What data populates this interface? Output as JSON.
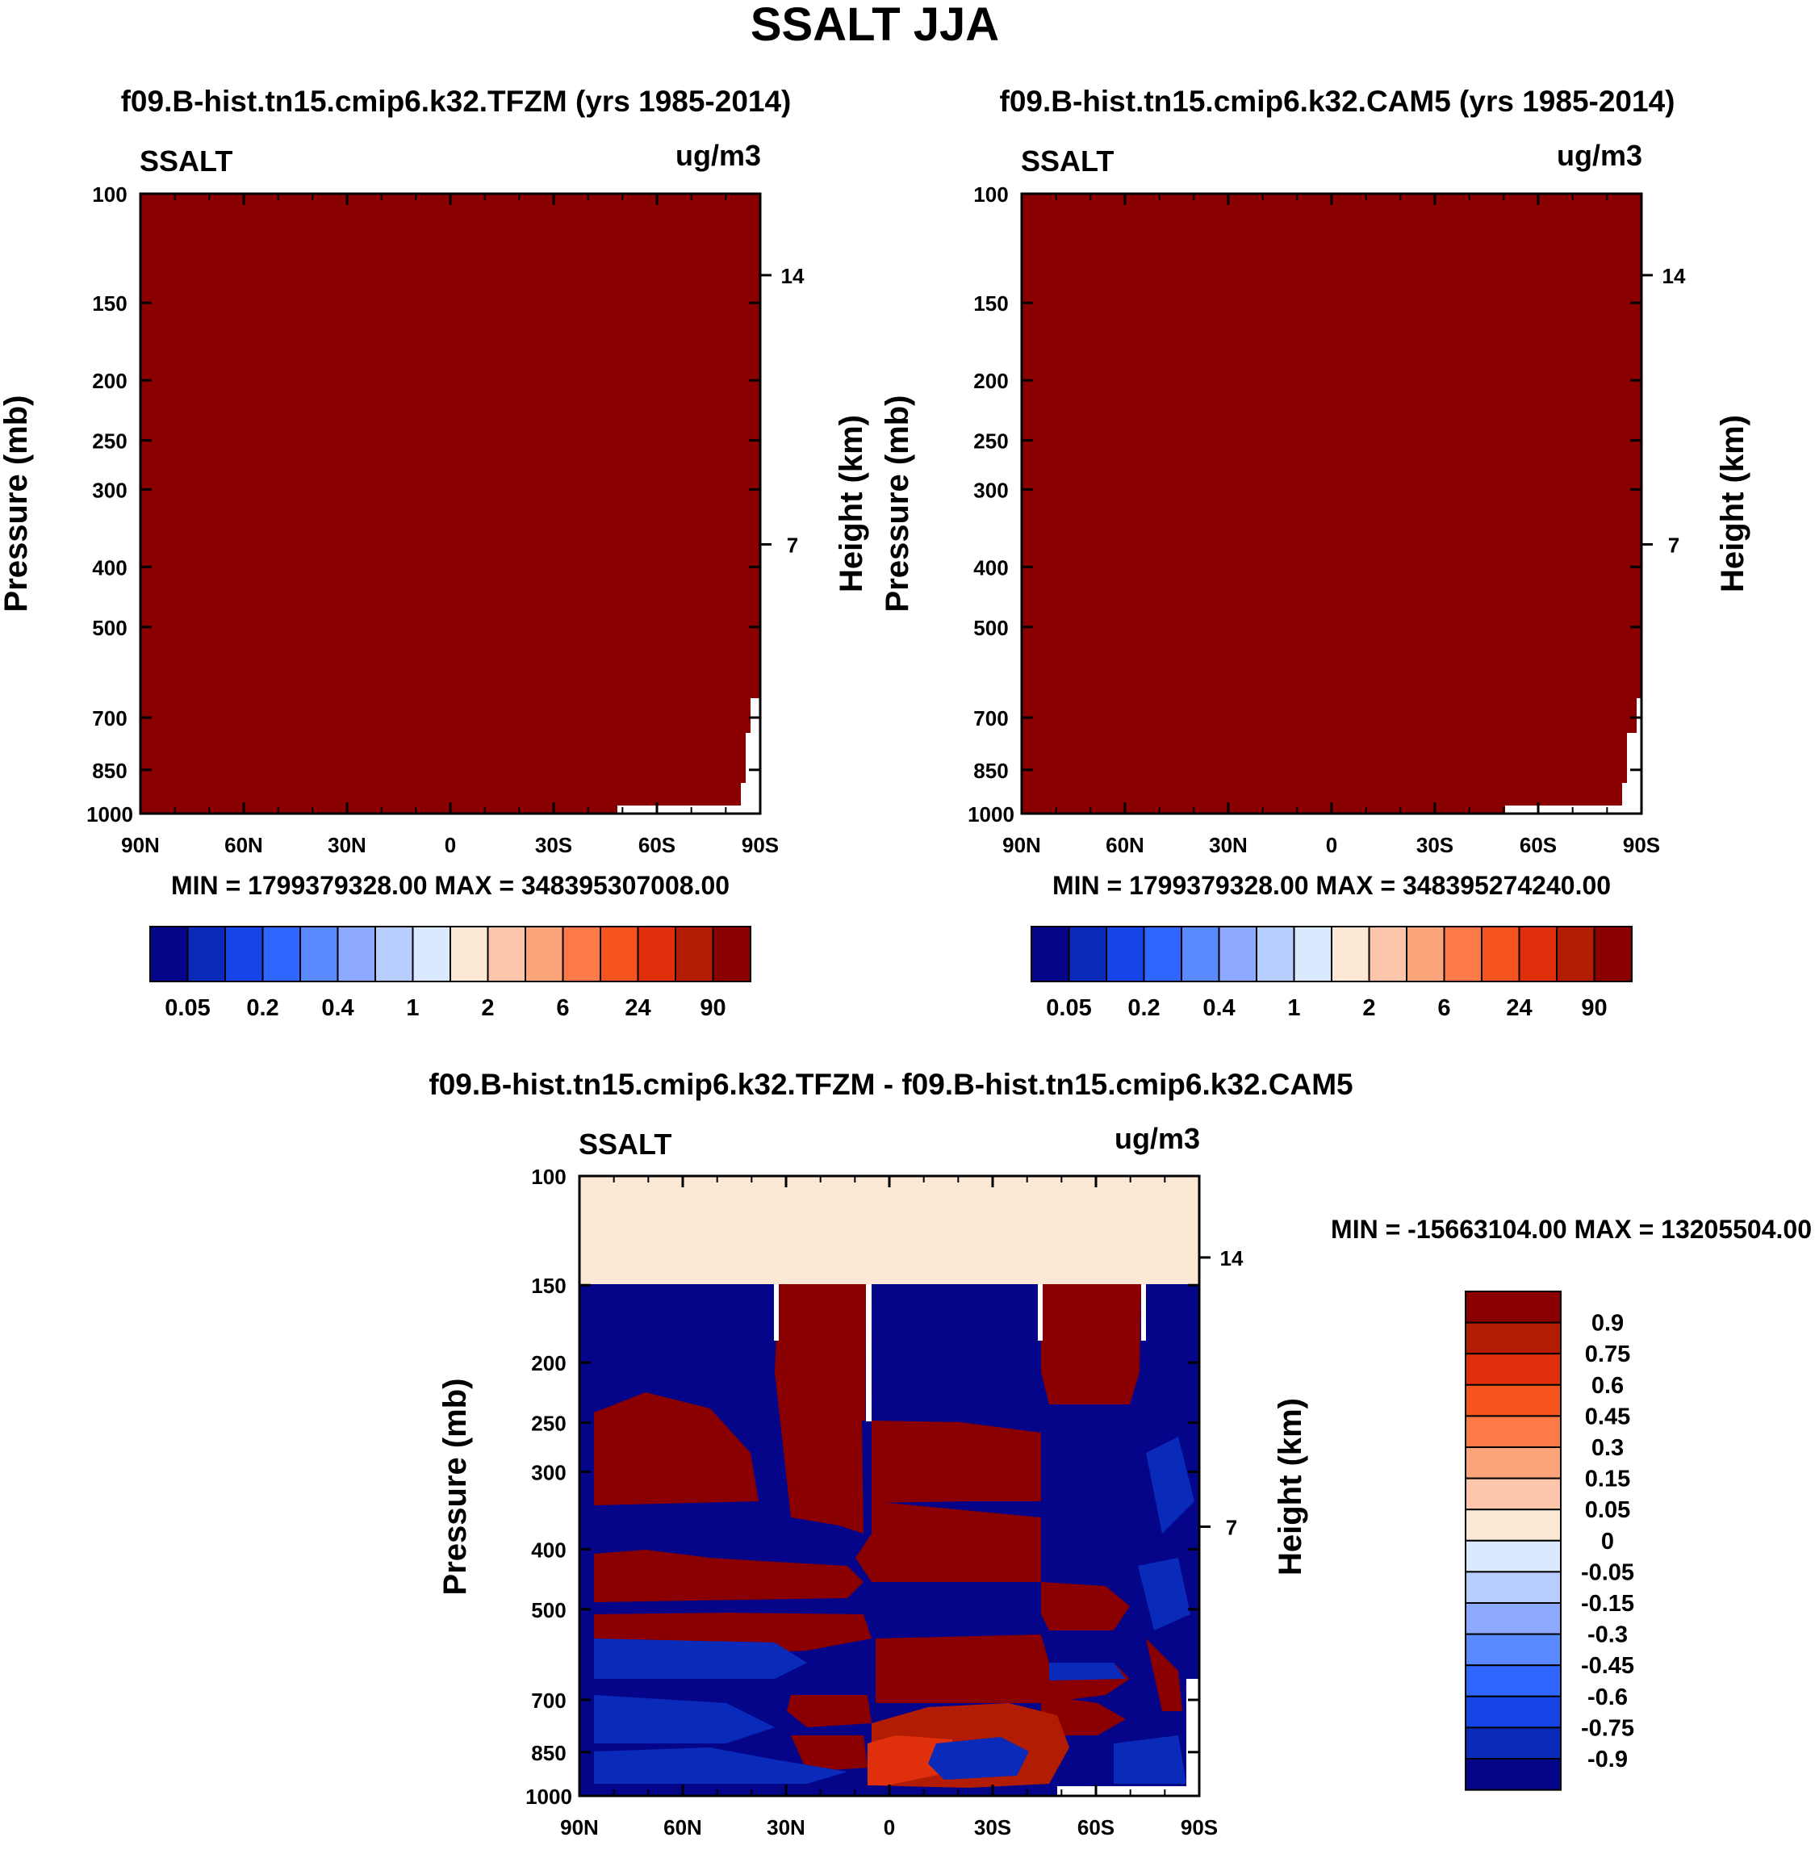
{
  "figure": {
    "title": "SSALT JJA"
  },
  "chart_data": [
    {
      "type": "heatmap",
      "title": "f09.B-hist.tn15.cmip6.k32.TFZM (yrs 1985-2014)",
      "left_label": "SSALT",
      "right_label": "ug/m3",
      "ylabel": "Pressure (mb)",
      "ylabel_right": "Height (km)",
      "x_ticks": [
        "90N",
        "60N",
        "30N",
        "0",
        "30S",
        "60S",
        "90S"
      ],
      "y_ticks": [
        "100",
        "150",
        "200",
        "250",
        "300",
        "400",
        "500",
        "700",
        "850",
        "1000"
      ],
      "y_ticks_right": [
        "14",
        "7"
      ],
      "ylim": [
        1000,
        100
      ],
      "stats": "MIN = 1799379328.00   MAX = 348395307008.00",
      "fill_color": "#8a0000",
      "colorbar": {
        "colors": [
          "#05058a",
          "#0a2aba",
          "#1545e6",
          "#2e66ff",
          "#5a88ff",
          "#8ca9ff",
          "#b8cdff",
          "#dbe9ff",
          "#fde8d6",
          "#fdc6aa",
          "#fca47b",
          "#fb7a48",
          "#f5541e",
          "#df300b",
          "#b11c03",
          "#8a0000"
        ],
        "labels": [
          "0.05",
          "0.2",
          "0.4",
          "1",
          "2",
          "6",
          "24",
          "90"
        ]
      }
    },
    {
      "type": "heatmap",
      "title": "f09.B-hist.tn15.cmip6.k32.CAM5 (yrs 1985-2014)",
      "left_label": "SSALT",
      "right_label": "ug/m3",
      "ylabel": "Pressure (mb)",
      "ylabel_right": "Height (km)",
      "x_ticks": [
        "90N",
        "60N",
        "30N",
        "0",
        "30S",
        "60S",
        "90S"
      ],
      "y_ticks": [
        "100",
        "150",
        "200",
        "250",
        "300",
        "400",
        "500",
        "700",
        "850",
        "1000"
      ],
      "y_ticks_right": [
        "14",
        "7"
      ],
      "ylim": [
        1000,
        100
      ],
      "stats": "MIN = 1799379328.00   MAX = 348395274240.00",
      "fill_color": "#8a0000",
      "colorbar": {
        "colors": [
          "#05058a",
          "#0a2aba",
          "#1545e6",
          "#2e66ff",
          "#5a88ff",
          "#8ca9ff",
          "#b8cdff",
          "#dbe9ff",
          "#fde8d6",
          "#fdc6aa",
          "#fca47b",
          "#fb7a48",
          "#f5541e",
          "#df300b",
          "#b11c03",
          "#8a0000"
        ],
        "labels": [
          "0.05",
          "0.2",
          "0.4",
          "1",
          "2",
          "6",
          "24",
          "90"
        ]
      }
    },
    {
      "type": "heatmap",
      "title": "f09.B-hist.tn15.cmip6.k32.TFZM - f09.B-hist.tn15.cmip6.k32.CAM5",
      "left_label": "SSALT",
      "right_label": "ug/m3",
      "ylabel": "Pressure (mb)",
      "ylabel_right": "Height (km)",
      "x_ticks": [
        "90N",
        "60N",
        "30N",
        "0",
        "30S",
        "60S",
        "90S"
      ],
      "y_ticks": [
        "100",
        "150",
        "200",
        "250",
        "300",
        "400",
        "500",
        "700",
        "850",
        "1000"
      ],
      "y_ticks_right": [
        "14",
        "7"
      ],
      "ylim": [
        1000,
        100
      ],
      "stats": "MIN = -15663104.00   MAX = 13205504.00",
      "colors": {
        "pos": "#8a0000",
        "neg": "#05058a",
        "zero": "#fde8d6",
        "mid_blue": "#0a2aba",
        "light_blue": "#1545e6",
        "orange": "#df300b"
      },
      "colorbar": {
        "colors": [
          "#8a0000",
          "#b11c03",
          "#df300b",
          "#f5541e",
          "#fb7a48",
          "#fca47b",
          "#fdc6aa",
          "#fde8d6",
          "#dbe9ff",
          "#b8cdff",
          "#8ca9ff",
          "#5a88ff",
          "#2e66ff",
          "#1545e6",
          "#0a2aba",
          "#05058a"
        ],
        "labels": [
          "0.9",
          "0.75",
          "0.6",
          "0.45",
          "0.3",
          "0.15",
          "0.05",
          "0",
          "-0.05",
          "-0.15",
          "-0.3",
          "-0.45",
          "-0.6",
          "-0.75",
          "-0.9"
        ]
      }
    }
  ]
}
